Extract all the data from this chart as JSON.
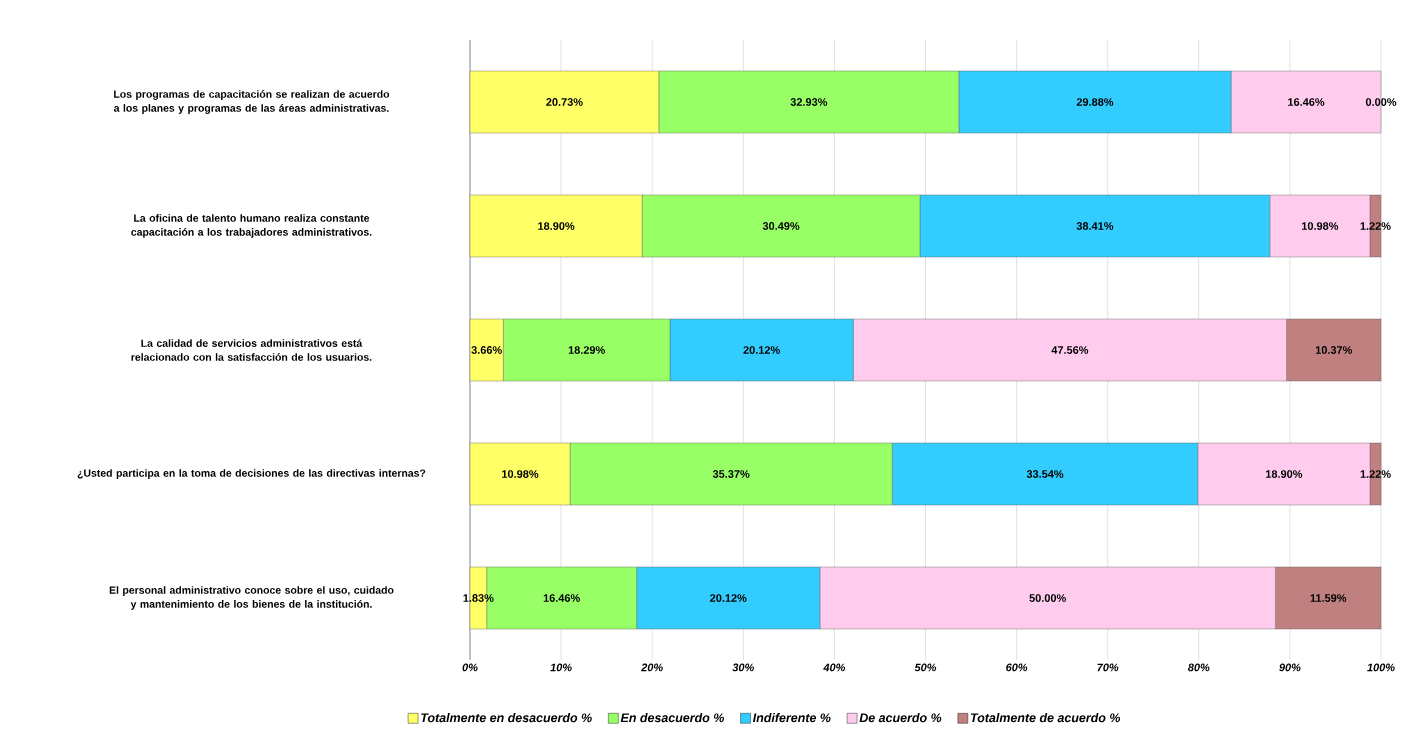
{
  "chart_data": {
    "type": "bar",
    "orientation": "horizontal",
    "stacked": true,
    "categories": [
      "Los programas de capacitación se realizan de acuerdo a los planes y programas de las áreas administrativas.",
      "La oficina de talento humano realiza constante capacitación a los trabajadores administrativos.",
      "La calidad de servicios administrativos está relacionado con la satisfacción de los usuarios.",
      "¿Usted participa en la toma de decisiones de las directivas internas?",
      "El personal administrativo conoce sobre el uso, cuidado y mantenimiento de los bienes de la institución."
    ],
    "series": [
      {
        "name": "Totalmente en desacuerdo %",
        "color": "#ffff66",
        "values": [
          20.73,
          18.9,
          3.66,
          10.98,
          1.83
        ],
        "value_labels": [
          "20.73%",
          "18.90%",
          "3.66%",
          "10.98%",
          "1.83%"
        ]
      },
      {
        "name": "En desacuerdo %",
        "color": "#99ff66",
        "values": [
          32.93,
          30.49,
          18.29,
          35.37,
          16.46
        ],
        "value_labels": [
          "32.93%",
          "30.49%",
          "18.29%",
          "35.37%",
          "16.46%"
        ]
      },
      {
        "name": "Indiferente %",
        "color": "#33ccff",
        "values": [
          29.88,
          38.41,
          20.12,
          33.54,
          20.12
        ],
        "value_labels": [
          "29.88%",
          "38.41%",
          "20.12%",
          "33.54%",
          "20.12%"
        ]
      },
      {
        "name": "De acuerdo %",
        "color": "#ffccee",
        "values": [
          16.46,
          10.98,
          47.56,
          18.9,
          50.0
        ],
        "value_labels": [
          "16.46%",
          "10.98%",
          "47.56%",
          "18.90%",
          "50.00%"
        ]
      },
      {
        "name": "Totalmente de acuerdo %",
        "color": "#c08080",
        "values": [
          0.0,
          1.22,
          10.37,
          1.22,
          11.59
        ],
        "value_labels": [
          "0.00%",
          "1.22%",
          "10.37%",
          "1.22%",
          "11.59%"
        ]
      }
    ],
    "xlim": [
      0,
      100
    ],
    "xticks": [
      {
        "value": 0,
        "label": "0%"
      },
      {
        "value": 10,
        "label": "10%"
      },
      {
        "value": 20,
        "label": "20%"
      },
      {
        "value": 30,
        "label": "30%"
      },
      {
        "value": 40,
        "label": "40%"
      },
      {
        "value": 50,
        "label": "50%"
      },
      {
        "value": 60,
        "label": "60%"
      },
      {
        "value": 70,
        "label": "70%"
      },
      {
        "value": 80,
        "label": "80%"
      },
      {
        "value": 90,
        "label": "90%"
      },
      {
        "value": 100,
        "label": "100%"
      }
    ],
    "grid": "x",
    "legend": "bottom"
  }
}
